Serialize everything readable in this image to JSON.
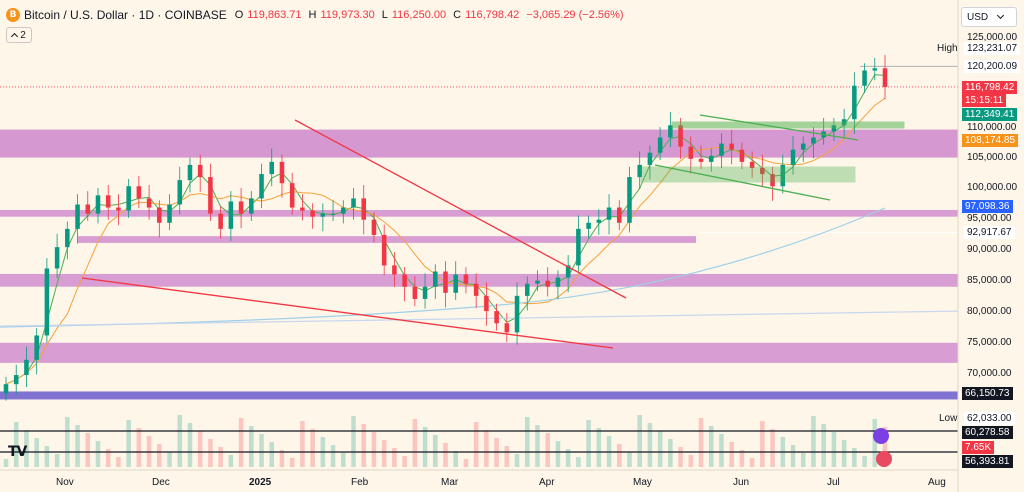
{
  "symbol": {
    "coin_glyph": "B",
    "title": "Bitcoin / U.S. Dollar · 1D · COINBASE",
    "open_label": "O",
    "open": "119,863.71",
    "high_label": "H",
    "high": "119,973.30",
    "low_label": "L",
    "low": "116,250.00",
    "close_label": "C",
    "close": "116,798.42",
    "change": "−3,065.29 (−2.56%)",
    "indicator_count": "2"
  },
  "currency": {
    "label": "USD"
  },
  "price_axis": {
    "ticks": [
      "125,000.00",
      "110,000.00",
      "105,000.00",
      "100,000.00",
      "95,000.00",
      "90,000.00",
      "85,000.00",
      "80,000.00",
      "75,000.00",
      "70,000.00"
    ],
    "high_label": "High",
    "high_value": "123,231.07",
    "low_label": "Low",
    "low_value": "62,033.00",
    "current_price": "116,798.42",
    "countdown": "15:15:11",
    "labels": [
      {
        "text": "120,200.09",
        "style": "white"
      },
      {
        "text": "112,349.41",
        "style": "green"
      },
      {
        "text": "108,174.85",
        "style": "orange"
      },
      {
        "text": "97,098.36",
        "style": "blue"
      },
      {
        "text": "92,917.67",
        "style": "white"
      },
      {
        "text": "66,150.73",
        "style": "black"
      },
      {
        "text": "60,278.58",
        "style": "black"
      },
      {
        "text": "7.65K",
        "style": "red"
      },
      {
        "text": "56,393.81",
        "style": "black"
      }
    ]
  },
  "time_axis": {
    "labels": [
      "Nov",
      "Dec",
      "2025",
      "Feb",
      "Mar",
      "Apr",
      "May",
      "Jun",
      "Jul",
      "Aug"
    ]
  },
  "colors": {
    "background": "#fdf6e9",
    "up": "#089981",
    "down": "#f23645",
    "zone_purple": "#c878c8",
    "zone_green": "#4caf50",
    "trendline_red": "#f23645",
    "ma_green": "#4caf50",
    "ma_orange": "#f7a13a",
    "ma_blue": "#9fd0e8"
  },
  "chart_data": {
    "type": "candlestick",
    "title": "Bitcoin / U.S. Dollar · 1D · COINBASE",
    "y_range": [
      56393.81,
      128000
    ],
    "x_months": [
      "Nov",
      "Dec",
      "2025",
      "Feb",
      "Mar",
      "Apr",
      "May",
      "Jun",
      "Jul",
      "Aug"
    ],
    "close_path": [
      68000,
      69500,
      72000,
      76000,
      87000,
      90500,
      93500,
      97500,
      96000,
      99000,
      97000,
      96500,
      100500,
      98500,
      97000,
      94500,
      97500,
      101500,
      104000,
      102000,
      96000,
      93500,
      98000,
      96000,
      98500,
      102500,
      104500,
      101000,
      97000,
      96500,
      95500,
      96000,
      96000,
      97000,
      98500,
      95000,
      92500,
      87500,
      86000,
      84000,
      82000,
      84000,
      86500,
      83000,
      86000,
      84500,
      82500,
      80000,
      78000,
      76500,
      82500,
      84500,
      85000,
      84000,
      85500,
      87500,
      93500,
      94500,
      95000,
      97000,
      94500,
      102000,
      104000,
      106000,
      108500,
      110500,
      107000,
      105000,
      104500,
      105500,
      107500,
      106500,
      104500,
      103500,
      102500,
      100500,
      104000,
      106500,
      107500,
      108500,
      109500,
      110500,
      111500,
      117000,
      119500,
      119863,
      116798
    ],
    "high": 123231.07,
    "low": 62033.0,
    "open": 119863.71,
    "last_high": 119973.3,
    "last_low": 116250.0,
    "last_close": 116798.42,
    "levels": [
      120200.09,
      112349.41,
      108174.85,
      97098.36,
      92917.67,
      66150.73
    ],
    "support_resistance_zones": [
      [
        105200,
        109800
      ],
      [
        95500,
        96600
      ],
      [
        91200,
        92300
      ],
      [
        84000,
        86100
      ],
      [
        71500,
        74800
      ]
    ]
  }
}
